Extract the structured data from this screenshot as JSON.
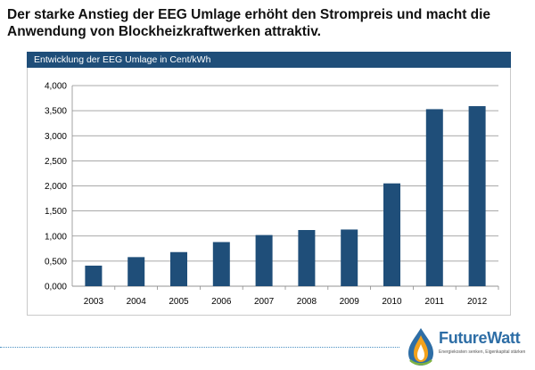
{
  "slide": {
    "title_line1": "Der starke Anstieg der EEG Umlage erhöht den Strompreis und macht die",
    "title_line2": "Anwendung von Blockheizkraftwerken attraktiv."
  },
  "chart_header": "Entwicklung der EEG Umlage in Cent/kWh",
  "chart_data": {
    "type": "bar",
    "title": "Entwicklung der EEG Umlage in Cent/kWh",
    "categories": [
      "2003",
      "2004",
      "2005",
      "2006",
      "2007",
      "2008",
      "2009",
      "2010",
      "2011",
      "2012"
    ],
    "values": [
      0.41,
      0.58,
      0.68,
      0.88,
      1.02,
      1.12,
      1.13,
      2.05,
      3.53,
      3.59
    ],
    "ylim": [
      0,
      4
    ],
    "yticks": [
      "0,000",
      "0,500",
      "1,000",
      "1,500",
      "2,000",
      "2,500",
      "3,000",
      "3,500",
      "4,000"
    ],
    "xlabel": "",
    "ylabel": "",
    "grid": true,
    "bar_color": "#1f4e79"
  },
  "logo": {
    "name_part1": "Future",
    "name_part2": "Watt",
    "tagline": "Energiekosten senken, Eigenkapital stärken"
  }
}
